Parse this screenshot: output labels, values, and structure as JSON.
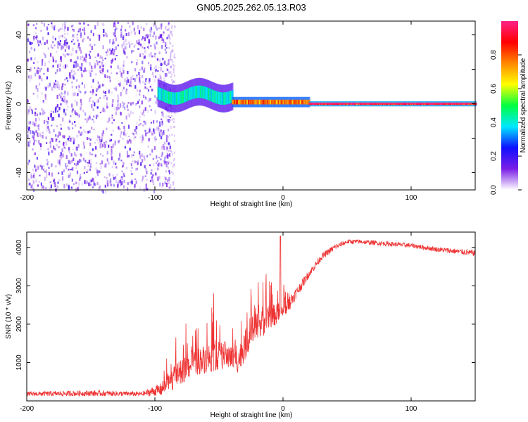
{
  "chart_data": [
    {
      "type": "heatmap",
      "title": "GN05.2025.262.05.13.R03",
      "xlabel": "Height of straight line (km)",
      "ylabel": "Frequency (Hz)",
      "xlim": [
        -200,
        150
      ],
      "ylim": [
        -50,
        48
      ],
      "x_ticks": [
        -200,
        -100,
        0,
        100
      ],
      "x_tick_labels": [
        "-200",
        "-100",
        "0",
        "100"
      ],
      "y_ticks": [
        40,
        20,
        0,
        -20,
        -40
      ],
      "y_tick_labels": [
        "40",
        "20",
        "0",
        "-20",
        "-40"
      ],
      "colorbar": {
        "label": "Normalized spectral amplitude",
        "range": [
          0,
          1
        ],
        "ticks": [
          0,
          0.2,
          0.4,
          0.6,
          0.8
        ],
        "tick_labels": [
          "0.0",
          "0.2",
          "0.4",
          "0.6",
          "0.8"
        ],
        "colormap": [
          "#ffffff",
          "#7a1ee6",
          "#1010ff",
          "#00e8ff",
          "#00ff40",
          "#ffff00",
          "#ff8800",
          "#ff0000",
          "#ff2288"
        ]
      },
      "regions": [
        {
          "name": "broadband noise",
          "x_range": [
            -200,
            -88
          ],
          "freq_range": [
            -50,
            48
          ],
          "amplitude": 0.15
        },
        {
          "name": "signal onset",
          "x_range": [
            -98,
            -40
          ],
          "center_freq": 5,
          "spread_hz": 8,
          "amplitude": 0.45
        },
        {
          "name": "narrowing line",
          "x_range": [
            -40,
            20
          ],
          "center_freq": 1,
          "spread_hz": 3,
          "amplitude": 0.85
        },
        {
          "name": "steady carrier",
          "x_range": [
            20,
            150
          ],
          "center_freq": 0,
          "spread_hz": 1.5,
          "amplitude": 0.95
        }
      ]
    },
    {
      "type": "line",
      "xlabel": "Height of straight line (km)",
      "ylabel": "SNR (10 * v/v)",
      "xlim": [
        -200,
        150
      ],
      "ylim": [
        0,
        4400
      ],
      "x_ticks": [
        -200,
        -100,
        0,
        100
      ],
      "x_tick_labels": [
        "-200",
        "-100",
        "0",
        "100"
      ],
      "y_ticks": [
        1000,
        2000,
        3000,
        4000
      ],
      "y_tick_labels": [
        "1000",
        "2000",
        "3000",
        "4000"
      ],
      "series": [
        {
          "name": "SNR",
          "color": "#ee3333",
          "x": [
            -200,
            -150,
            -110,
            -95,
            -85,
            -70,
            -55,
            -45,
            -35,
            -25,
            -20,
            -10,
            0,
            10,
            20,
            30,
            40,
            50,
            60,
            80,
            100,
            120,
            150
          ],
          "y": [
            180,
            200,
            180,
            300,
            600,
            1000,
            1150,
            1200,
            1050,
            1800,
            1900,
            2200,
            2300,
            2800,
            3300,
            3750,
            4000,
            4150,
            4150,
            4100,
            4050,
            3950,
            3850
          ],
          "noise_amplitude": [
            120,
            150,
            120,
            350,
            600,
            700,
            800,
            700,
            650,
            900,
            800,
            600,
            500,
            300,
            200,
            180,
            150,
            120,
            120,
            120,
            120,
            130,
            150
          ]
        }
      ]
    }
  ]
}
